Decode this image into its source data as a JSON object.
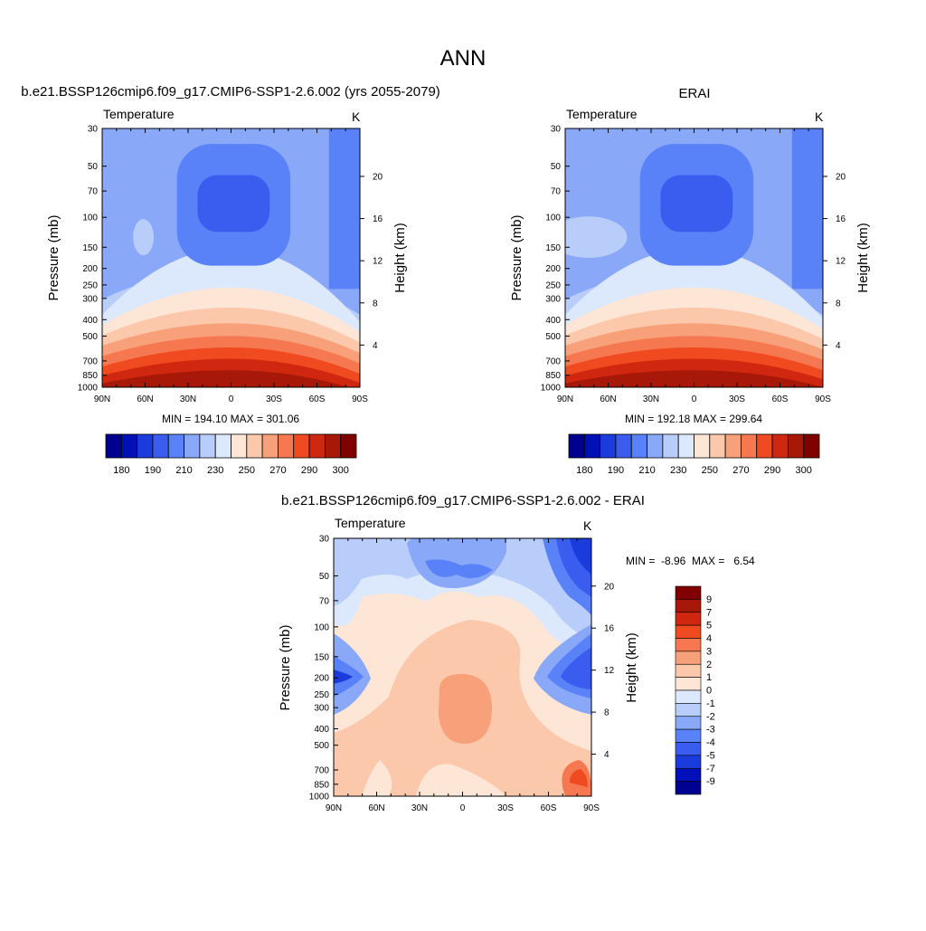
{
  "page_title": "ANN",
  "palettes": {
    "abs": [
      "#000090",
      "#0010b8",
      "#1a3cdc",
      "#3a5df0",
      "#5a82f8",
      "#8aa8f8",
      "#b8cdfa",
      "#dce8fc",
      "#fde6d6",
      "#fbc8ac",
      "#f8a07a",
      "#f57850",
      "#f04a20",
      "#d02810",
      "#a81808",
      "#800000"
    ],
    "diff": [
      "#000090",
      "#0010b8",
      "#1a3cdc",
      "#3a5df0",
      "#5a82f8",
      "#8aa8f8",
      "#b8cdfa",
      "#dce8fc",
      "#fde6d6",
      "#fbc8ac",
      "#f8a07a",
      "#f57850",
      "#f04a20",
      "#d02810",
      "#a81808",
      "#800000"
    ]
  },
  "chart_data": [
    {
      "type": "contour",
      "title": "b.e21.BSSP126cmip6.f09_g17.CMIP6-SSP1-2.6.002 (yrs 2055-2079)",
      "variable": "Temperature",
      "units": "K",
      "ylabel": "Pressure (mb)",
      "ylabel_right": "Height (km)",
      "x_ticks": [
        "90N",
        "60N",
        "30N",
        "0",
        "30S",
        "60S",
        "90S"
      ],
      "y_ticks": [
        "30",
        "50",
        "70",
        "100",
        "150",
        "200",
        "250",
        "300",
        "400",
        "500",
        "700",
        "850",
        "1000"
      ],
      "y_right_ticks": [
        "20",
        "16",
        "12",
        "8",
        "4"
      ],
      "stats": "MIN = 194.10  MAX = 301.06",
      "min": 194.1,
      "max": 301.06,
      "colorbar_labels": [
        "180",
        "190",
        "210",
        "230",
        "250",
        "270",
        "290",
        "300"
      ],
      "cold_core": 0.5
    },
    {
      "type": "contour",
      "title": "ERAI",
      "variable": "Temperature",
      "units": "K",
      "ylabel": "Pressure (mb)",
      "ylabel_right": "Height (km)",
      "x_ticks": [
        "90N",
        "60N",
        "30N",
        "0",
        "30S",
        "60S",
        "90S"
      ],
      "y_ticks": [
        "30",
        "50",
        "70",
        "100",
        "150",
        "200",
        "250",
        "300",
        "400",
        "500",
        "700",
        "850",
        "1000"
      ],
      "y_right_ticks": [
        "20",
        "16",
        "12",
        "8",
        "4"
      ],
      "stats": "MIN = 192.18  MAX = 299.64",
      "min": 192.18,
      "max": 299.64,
      "colorbar_labels": [
        "180",
        "190",
        "210",
        "230",
        "250",
        "270",
        "290",
        "300"
      ],
      "cold_core": 0.5
    },
    {
      "type": "contour",
      "title": "b.e21.BSSP126cmip6.f09_g17.CMIP6-SSP1-2.6.002 - ERAI",
      "variable": "Temperature",
      "units": "K",
      "ylabel": "Pressure (mb)",
      "ylabel_right": "Height (km)",
      "x_ticks": [
        "90N",
        "60N",
        "30N",
        "0",
        "30S",
        "60S",
        "90S"
      ],
      "y_ticks": [
        "30",
        "50",
        "70",
        "100",
        "150",
        "200",
        "250",
        "300",
        "400",
        "500",
        "700",
        "850",
        "1000"
      ],
      "y_right_ticks": [
        "20",
        "16",
        "12",
        "8",
        "4"
      ],
      "stats": "MIN =  -8.96  MAX =   6.54",
      "min": -8.96,
      "max": 6.54,
      "colorbar_labels": [
        "9",
        "7",
        "5",
        "4",
        "3",
        "2",
        "1",
        "0",
        "-1",
        "-2",
        "-3",
        "-4",
        "-5",
        "-7",
        "-9"
      ]
    }
  ]
}
